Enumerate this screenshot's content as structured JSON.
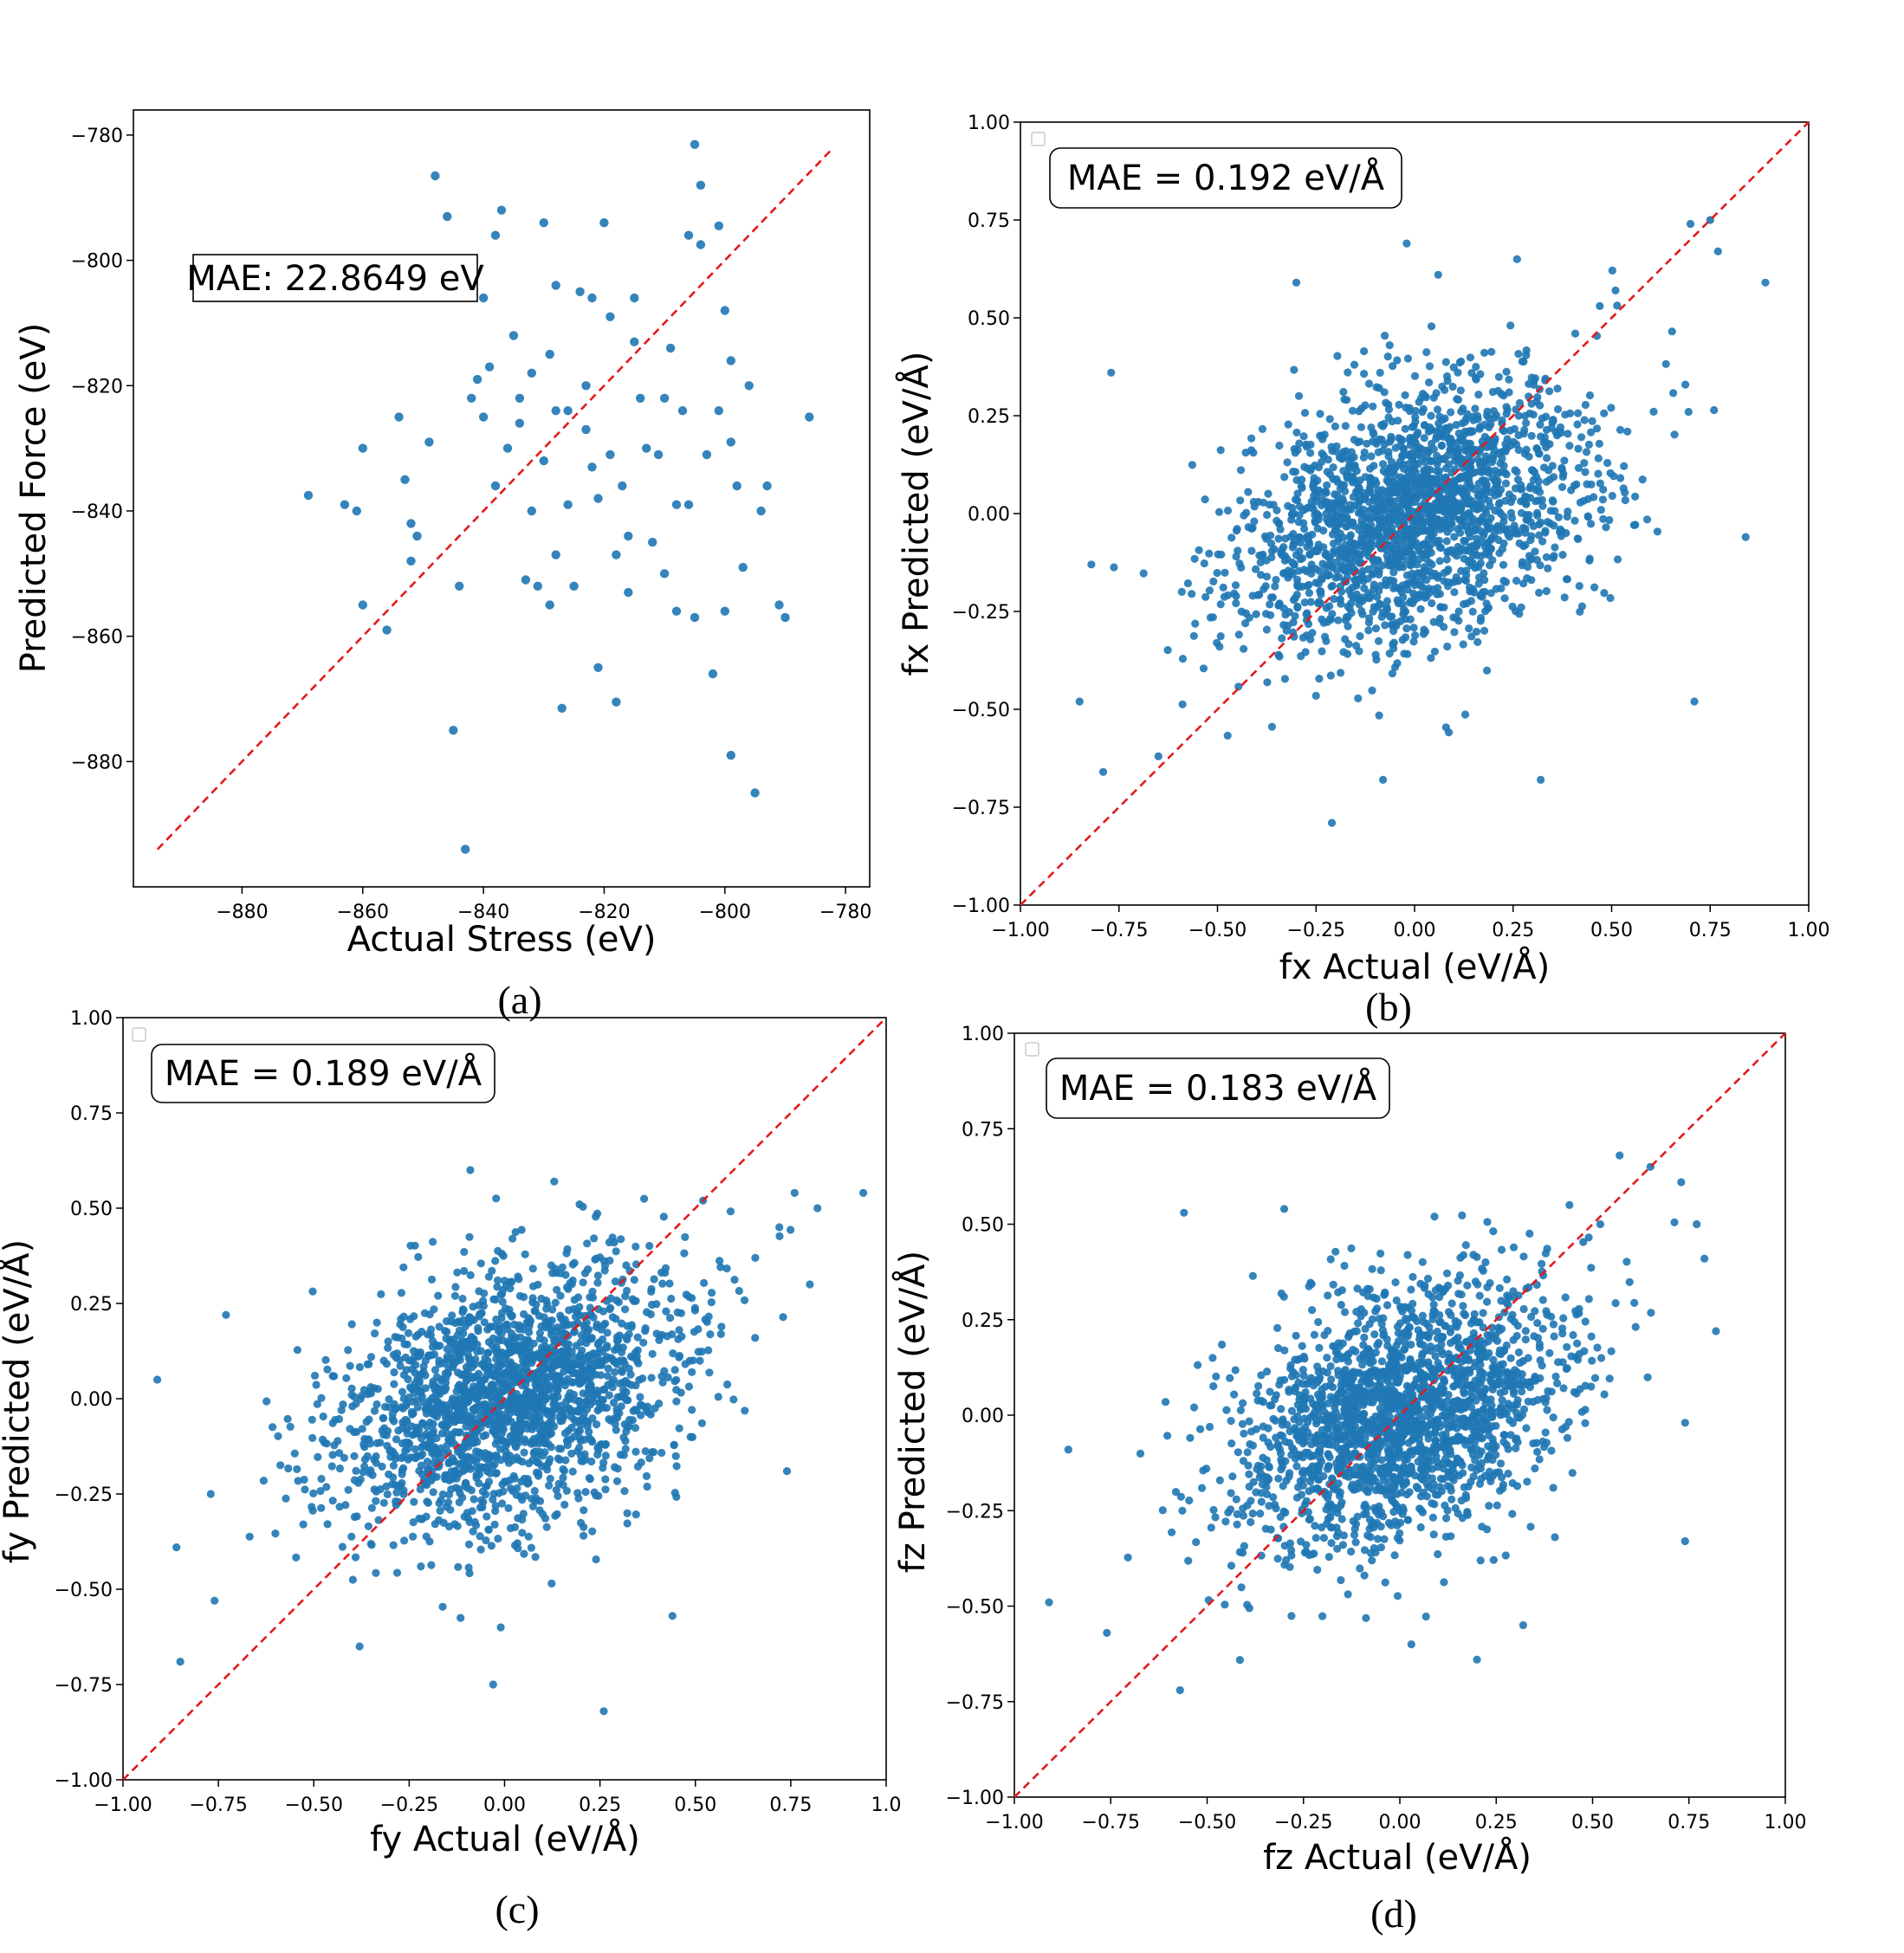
{
  "figure": {
    "panels": [
      {
        "id": "a",
        "caption": "(a)",
        "annotation": "MAE: 22.8649 eV",
        "annotation_style": "square"
      },
      {
        "id": "b",
        "caption": "(b)",
        "annotation": "MAE = 0.192 eV/Å",
        "annotation_style": "rounded"
      },
      {
        "id": "c",
        "caption": "(c)",
        "annotation": "MAE = 0.189 eV/Å",
        "annotation_style": "rounded"
      },
      {
        "id": "d",
        "caption": "(d)",
        "annotation": "MAE = 0.183 eV/Å",
        "annotation_style": "rounded"
      }
    ]
  },
  "colors": {
    "points": "#1f77b4",
    "reference_line": "#e31a1c"
  },
  "chart_data": [
    {
      "panel": "a",
      "type": "scatter",
      "title": "",
      "xlabel": "Actual Stress (eV)",
      "ylabel": "Predicted Force (eV)",
      "xlim": [
        -898,
        -776
      ],
      "ylim": [
        -900,
        -776
      ],
      "xticks": [
        -880,
        -860,
        -840,
        -820,
        -800,
        -780
      ],
      "yticks": [
        -780,
        -800,
        -820,
        -840,
        -860,
        -880
      ],
      "xtick_labels": [
        "−880",
        "−860",
        "−840",
        "−820",
        "−800",
        "−780"
      ],
      "ytick_labels": [
        "−780",
        "−800",
        "−820",
        "−840",
        "−860",
        "−880"
      ],
      "reference_line": [
        [
          -894,
          -894
        ],
        [
          -782,
          -782
        ]
      ],
      "points": [
        [
          -869,
          -837.5
        ],
        [
          -863,
          -839
        ],
        [
          -861,
          -840
        ],
        [
          -860,
          -855
        ],
        [
          -860,
          -830
        ],
        [
          -856,
          -859
        ],
        [
          -854,
          -825
        ],
        [
          -853,
          -835
        ],
        [
          -852,
          -848
        ],
        [
          -852,
          -842
        ],
        [
          -851,
          -844
        ],
        [
          -849,
          -829
        ],
        [
          -848,
          -786.5
        ],
        [
          -846,
          -793
        ],
        [
          -845,
          -875
        ],
        [
          -844,
          -852
        ],
        [
          -843,
          -894
        ],
        [
          -842,
          -822
        ],
        [
          -841,
          -819
        ],
        [
          -840,
          -825
        ],
        [
          -840,
          -806
        ],
        [
          -839,
          -817
        ],
        [
          -838,
          -836
        ],
        [
          -838,
          -796
        ],
        [
          -837,
          -792
        ],
        [
          -836,
          -830
        ],
        [
          -835,
          -812
        ],
        [
          -834,
          -822
        ],
        [
          -834,
          -826
        ],
        [
          -833,
          -851
        ],
        [
          -832,
          -818
        ],
        [
          -832,
          -840
        ],
        [
          -831,
          -852
        ],
        [
          -830,
          -794
        ],
        [
          -830,
          -832
        ],
        [
          -829,
          -855
        ],
        [
          -829,
          -815
        ],
        [
          -828,
          -804
        ],
        [
          -828,
          -824
        ],
        [
          -828,
          -847
        ],
        [
          -827,
          -871.5
        ],
        [
          -826,
          -824
        ],
        [
          -826,
          -839
        ],
        [
          -825,
          -852
        ],
        [
          -824,
          -805
        ],
        [
          -823,
          -820
        ],
        [
          -823,
          -827
        ],
        [
          -822,
          -806
        ],
        [
          -822,
          -833
        ],
        [
          -821,
          -838
        ],
        [
          -821,
          -865
        ],
        [
          -820,
          -794
        ],
        [
          -819,
          -809
        ],
        [
          -819,
          -831
        ],
        [
          -818,
          -847
        ],
        [
          -818,
          -870.5
        ],
        [
          -817,
          -836
        ],
        [
          -816,
          -853
        ],
        [
          -816,
          -844
        ],
        [
          -815,
          -813
        ],
        [
          -815,
          -806
        ],
        [
          -814,
          -822
        ],
        [
          -813,
          -830
        ],
        [
          -812,
          -845
        ],
        [
          -811,
          -831
        ],
        [
          -810,
          -850
        ],
        [
          -810,
          -822
        ],
        [
          -809,
          -814
        ],
        [
          -808,
          -839
        ],
        [
          -808,
          -856
        ],
        [
          -807,
          -824
        ],
        [
          -806,
          -796
        ],
        [
          -806,
          -839
        ],
        [
          -805,
          -781.5
        ],
        [
          -805,
          -857
        ],
        [
          -804,
          -797.5
        ],
        [
          -804,
          -788
        ],
        [
          -803,
          -831
        ],
        [
          -802,
          -866
        ],
        [
          -801,
          -794.5
        ],
        [
          -800,
          -856
        ],
        [
          -800,
          -808
        ],
        [
          -799,
          -879
        ],
        [
          -799,
          -816
        ],
        [
          -798,
          -836
        ],
        [
          -797,
          -849
        ],
        [
          -796,
          -820
        ],
        [
          -795,
          -885
        ],
        [
          -794,
          -840
        ],
        [
          -793,
          -836
        ],
        [
          -791,
          -855
        ],
        [
          -801,
          -824
        ],
        [
          -799,
          -829
        ],
        [
          -786,
          -825
        ],
        [
          -790,
          -857
        ]
      ],
      "series_count": 1
    },
    {
      "panel": "b",
      "type": "scatter",
      "title": "",
      "xlabel": "fx Actual (eV/Å)",
      "ylabel": "fx Predicted (eV/Å)",
      "xlim": [
        -1.0,
        1.0
      ],
      "ylim": [
        -1.0,
        1.0
      ],
      "xticks": [
        -1.0,
        -0.75,
        -0.5,
        -0.25,
        0.0,
        0.25,
        0.5,
        0.75,
        1.0
      ],
      "yticks": [
        -1.0,
        -0.75,
        -0.5,
        -0.25,
        0.0,
        0.25,
        0.5,
        0.75,
        1.0
      ],
      "xtick_labels": [
        "−1.00",
        "−0.75",
        "−0.50",
        "−0.25",
        "0.00",
        "0.25",
        "0.50",
        "0.75",
        "1.00"
      ],
      "ytick_labels": [
        "−1.00",
        "−0.75",
        "−0.50",
        "−0.25",
        "0.00",
        "0.25",
        "0.50",
        "0.75",
        "1.00"
      ],
      "reference_line": [
        [
          -1.0,
          -1.0
        ],
        [
          1.0,
          1.0
        ]
      ],
      "distribution": {
        "n": 2000,
        "x_sd": 0.22,
        "y_sd": 0.17,
        "correlation": 0.32,
        "seed": 11
      },
      "outliers": [
        [
          0.89,
          0.59
        ],
        [
          0.75,
          0.75
        ],
        [
          0.7,
          0.74
        ],
        [
          0.77,
          0.67
        ],
        [
          -0.02,
          0.69
        ],
        [
          0.26,
          0.65
        ],
        [
          -0.77,
          0.36
        ],
        [
          -0.82,
          -0.13
        ],
        [
          -0.79,
          -0.66
        ],
        [
          -0.21,
          -0.79
        ],
        [
          -0.65,
          -0.62
        ],
        [
          0.84,
          -0.06
        ],
        [
          0.71,
          -0.48
        ],
        [
          -0.85,
          -0.48
        ],
        [
          0.32,
          -0.68
        ],
        [
          -0.08,
          -0.68
        ],
        [
          0.47,
          0.53
        ],
        [
          -0.3,
          0.59
        ],
        [
          0.51,
          0.57
        ],
        [
          0.06,
          0.61
        ]
      ],
      "series_count": 1
    },
    {
      "panel": "c",
      "type": "scatter",
      "title": "",
      "xlabel": "fy Actual (eV/Å)",
      "ylabel": "fy Predicted (eV/Å)",
      "xlim": [
        -1.0,
        1.0
      ],
      "ylim": [
        -1.0,
        1.0
      ],
      "xticks": [
        -1.0,
        -0.75,
        -0.5,
        -0.25,
        0.0,
        0.25,
        0.5,
        0.75,
        1.0
      ],
      "yticks": [
        -1.0,
        -0.75,
        -0.5,
        -0.25,
        0.0,
        0.25,
        0.5,
        0.75,
        1.0
      ],
      "xtick_labels": [
        "−1.00",
        "−0.75",
        "−0.50",
        "−0.25",
        "0.00",
        "0.25",
        "0.50",
        "0.75",
        "1.0"
      ],
      "ytick_labels": [
        "−1.00",
        "−0.75",
        "−0.50",
        "−0.25",
        "0.00",
        "0.25",
        "0.50",
        "0.75",
        "1.00"
      ],
      "reference_line": [
        [
          -1.0,
          -1.0
        ],
        [
          1.0,
          1.0
        ]
      ],
      "distribution": {
        "n": 2000,
        "x_sd": 0.22,
        "y_sd": 0.17,
        "correlation": 0.35,
        "seed": 23
      },
      "outliers": [
        [
          0.94,
          0.54
        ],
        [
          0.82,
          0.5
        ],
        [
          0.76,
          0.54
        ],
        [
          0.8,
          0.3
        ],
        [
          -0.91,
          0.05
        ],
        [
          -0.86,
          -0.39
        ],
        [
          -0.85,
          -0.69
        ],
        [
          -0.76,
          -0.53
        ],
        [
          -0.77,
          -0.25
        ],
        [
          0.26,
          -0.82
        ],
        [
          -0.03,
          -0.75
        ],
        [
          -0.38,
          -0.65
        ],
        [
          0.74,
          -0.19
        ],
        [
          -0.73,
          0.22
        ],
        [
          -0.09,
          0.6
        ],
        [
          0.13,
          0.57
        ],
        [
          0.44,
          -0.57
        ],
        [
          -0.01,
          -0.6
        ],
        [
          0.72,
          0.45
        ],
        [
          0.52,
          0.52
        ]
      ],
      "series_count": 1
    },
    {
      "panel": "d",
      "type": "scatter",
      "title": "",
      "xlabel": "fz Actual (eV/Å)",
      "ylabel": "fz Predicted (eV/Å)",
      "xlim": [
        -1.0,
        1.0
      ],
      "ylim": [
        -1.0,
        1.0
      ],
      "xticks": [
        -1.0,
        -0.75,
        -0.5,
        -0.25,
        0.0,
        0.25,
        0.5,
        0.75,
        1.0
      ],
      "yticks": [
        -1.0,
        -0.75,
        -0.5,
        -0.25,
        0.0,
        0.25,
        0.5,
        0.75,
        1.0
      ],
      "xtick_labels": [
        "−1.00",
        "−0.75",
        "−0.50",
        "−0.25",
        "0.00",
        "0.25",
        "0.50",
        "0.75",
        "1.00"
      ],
      "ytick_labels": [
        "−1.00",
        "−0.75",
        "−0.50",
        "−0.25",
        "0.00",
        "0.25",
        "0.50",
        "0.75",
        "1.00"
      ],
      "reference_line": [
        [
          -1.0,
          -1.0
        ],
        [
          1.0,
          1.0
        ]
      ],
      "distribution": {
        "n": 2000,
        "x_sd": 0.21,
        "y_sd": 0.17,
        "correlation": 0.36,
        "seed": 37
      },
      "outliers": [
        [
          -0.91,
          -0.49
        ],
        [
          -0.86,
          -0.09
        ],
        [
          -0.76,
          -0.57
        ],
        [
          -0.57,
          -0.72
        ],
        [
          0.2,
          -0.64
        ],
        [
          0.03,
          -0.6
        ],
        [
          0.82,
          0.22
        ],
        [
          0.79,
          0.41
        ],
        [
          0.77,
          0.5
        ],
        [
          0.73,
          0.61
        ],
        [
          0.65,
          0.65
        ],
        [
          0.57,
          0.68
        ],
        [
          0.74,
          -0.02
        ],
        [
          0.74,
          -0.33
        ],
        [
          -0.56,
          0.53
        ],
        [
          -0.3,
          0.54
        ],
        [
          0.44,
          0.55
        ],
        [
          0.09,
          0.52
        ],
        [
          0.32,
          -0.55
        ],
        [
          0.52,
          0.5
        ]
      ],
      "series_count": 1
    }
  ]
}
